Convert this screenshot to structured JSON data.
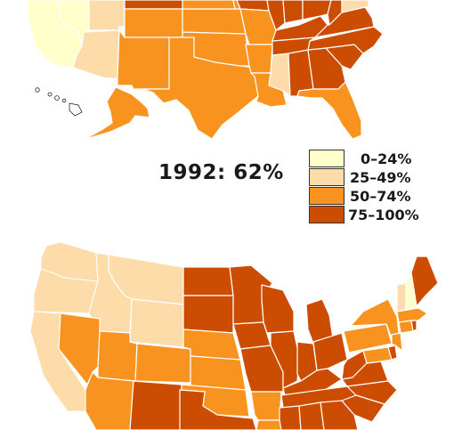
{
  "year_label": "1992: 62%",
  "legend": [
    {
      "label": "0–24%",
      "color": "#ffffcc"
    },
    {
      "label": "25–49%",
      "color": "#fddcaa"
    },
    {
      "label": "50–74%",
      "color": "#f7931e"
    },
    {
      "label": "75–100%",
      "color": "#cc4c02"
    }
  ],
  "colors": {
    "tier1": "#ffffcc",
    "tier2": "#fddcaa",
    "tier3": "#f7931e",
    "tier4": "#cc4c02",
    "tier3_light": "#fbab4d",
    "tier4_light": "#dd6410"
  },
  "maps": [
    {
      "name": "top-map",
      "regions": [
        {
          "id": "california",
          "tier": 1
        },
        {
          "id": "nevada",
          "tier": 1
        },
        {
          "id": "utah",
          "tier": 2
        },
        {
          "id": "arizona",
          "tier": 2
        },
        {
          "id": "wyoming",
          "tier": 4
        },
        {
          "id": "colorado",
          "tier": 3
        },
        {
          "id": "new-mexico",
          "tier": 3
        },
        {
          "id": "texas",
          "tier": 3
        },
        {
          "id": "oklahoma",
          "tier": 3
        },
        {
          "id": "kansas",
          "tier": 3
        },
        {
          "id": "south-dakota",
          "tier": 3
        },
        {
          "id": "nebraska",
          "tier": 3
        },
        {
          "id": "iowa",
          "tier": 4
        },
        {
          "id": "missouri",
          "tier": 3
        },
        {
          "id": "arkansas",
          "tier": 3
        },
        {
          "id": "louisiana",
          "tier": 3
        },
        {
          "id": "mississippi",
          "tier": 2
        },
        {
          "id": "alabama",
          "tier": 4
        },
        {
          "id": "georgia",
          "tier": 4
        },
        {
          "id": "south-carolina",
          "tier": 4
        },
        {
          "id": "north-carolina",
          "tier": 4
        },
        {
          "id": "tennessee",
          "tier": 4
        },
        {
          "id": "kentucky",
          "tier": 4
        },
        {
          "id": "illinois",
          "tier": 4
        },
        {
          "id": "indiana",
          "tier": 4
        },
        {
          "id": "ohio",
          "tier": 4
        },
        {
          "id": "west-virginia",
          "tier": 4
        },
        {
          "id": "virginia",
          "tier": 4
        },
        {
          "id": "maryland",
          "tier": 2
        },
        {
          "id": "florida",
          "tier": 3
        },
        {
          "id": "alaska",
          "tier": 3
        },
        {
          "id": "hawaii",
          "tier": 0
        }
      ]
    },
    {
      "name": "bottom-map",
      "regions": [
        {
          "id": "washington",
          "tier": 2
        },
        {
          "id": "oregon",
          "tier": 2
        },
        {
          "id": "idaho",
          "tier": 2
        },
        {
          "id": "montana",
          "tier": 2
        },
        {
          "id": "wyoming",
          "tier": 2
        },
        {
          "id": "california",
          "tier": 2
        },
        {
          "id": "nevada",
          "tier": 3
        },
        {
          "id": "utah",
          "tier": 3
        },
        {
          "id": "colorado",
          "tier": 3
        },
        {
          "id": "arizona",
          "tier": 3
        },
        {
          "id": "new-mexico",
          "tier": 4
        },
        {
          "id": "north-dakota",
          "tier": 4
        },
        {
          "id": "south-dakota",
          "tier": 4
        },
        {
          "id": "nebraska",
          "tier": 3
        },
        {
          "id": "kansas",
          "tier": 3
        },
        {
          "id": "oklahoma",
          "tier": 3
        },
        {
          "id": "texas",
          "tier": 4
        },
        {
          "id": "minnesota",
          "tier": 4
        },
        {
          "id": "iowa",
          "tier": 4
        },
        {
          "id": "missouri",
          "tier": 4
        },
        {
          "id": "arkansas",
          "tier": 3
        },
        {
          "id": "louisiana",
          "tier": 3
        },
        {
          "id": "wisconsin",
          "tier": 4
        },
        {
          "id": "michigan",
          "tier": 4
        },
        {
          "id": "illinois",
          "tier": 4
        },
        {
          "id": "indiana",
          "tier": 4
        },
        {
          "id": "ohio",
          "tier": 4
        },
        {
          "id": "kentucky",
          "tier": 4
        },
        {
          "id": "tennessee",
          "tier": 4
        },
        {
          "id": "mississippi",
          "tier": 4
        },
        {
          "id": "alabama",
          "tier": 4
        },
        {
          "id": "georgia",
          "tier": 4
        },
        {
          "id": "pennsylvania",
          "tier": 3
        },
        {
          "id": "new-york",
          "tier": 3
        },
        {
          "id": "west-virginia",
          "tier": 4
        },
        {
          "id": "virginia",
          "tier": 4
        },
        {
          "id": "north-carolina",
          "tier": 4
        },
        {
          "id": "south-carolina",
          "tier": 4
        },
        {
          "id": "maryland",
          "tier": 3
        },
        {
          "id": "delaware",
          "tier": 4
        },
        {
          "id": "new-jersey",
          "tier": 3
        },
        {
          "id": "maine",
          "tier": 4
        },
        {
          "id": "vermont",
          "tier": 2
        },
        {
          "id": "new-hampshire",
          "tier": 1
        },
        {
          "id": "massachusetts",
          "tier": 3
        },
        {
          "id": "connecticut",
          "tier": 3
        },
        {
          "id": "rhode-island",
          "tier": 4
        }
      ]
    }
  ]
}
